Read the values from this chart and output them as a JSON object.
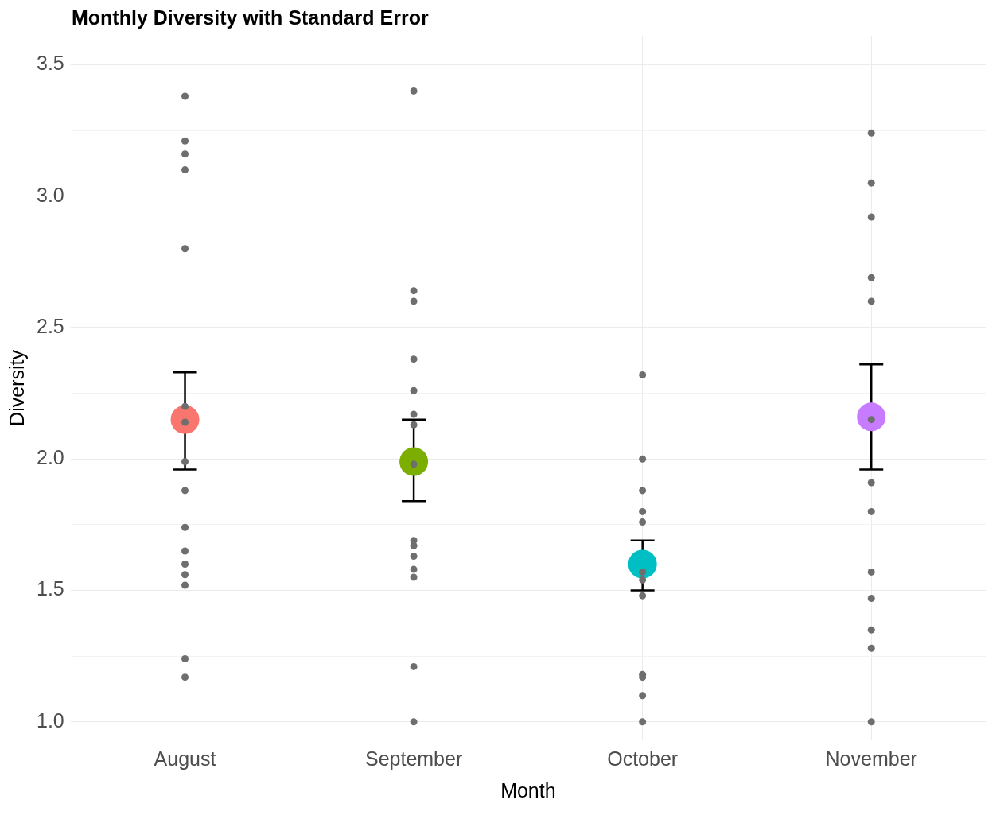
{
  "chart_data": {
    "type": "scatter",
    "title": "Monthly Diversity with Standard Error",
    "xlabel": "Month",
    "ylabel": "Diversity",
    "categories": [
      "August",
      "September",
      "October",
      "November"
    ],
    "ylim": [
      0.93,
      3.61
    ],
    "yticks": [
      {
        "value": 1,
        "label": "1.0"
      },
      {
        "value": 1.25,
        "label": null
      },
      1.5,
      {
        "value": 1.75,
        "label": null
      },
      {
        "value": 2,
        "label": "2.0"
      },
      {
        "value": 2.25,
        "label": null
      },
      2.5,
      {
        "value": 2.75,
        "label": null
      },
      {
        "value": 3,
        "label": "3.0"
      },
      {
        "value": 3.25,
        "label": null
      },
      3.5
    ],
    "grid": true,
    "legend": false,
    "marker": "circle",
    "series": [
      {
        "x": [
          "August",
          "September",
          "October",
          "November"
        ],
        "values": [
          2.15,
          1.99,
          1.6,
          2.16
        ],
        "colors": [
          "#f8766d",
          "#7cae00",
          "#00bfc4",
          "#c77cff"
        ],
        "errors": [
          [
            1.96,
            2.33
          ],
          [
            1.84,
            2.15
          ],
          [
            1.5,
            1.69
          ],
          [
            1.96,
            2.36
          ]
        ]
      },
      {
        "color": "#6e6e6e",
        "x": [
          "August",
          "August",
          "August",
          "August",
          "August",
          "August",
          "August",
          "August",
          "August",
          "August",
          "August",
          "August",
          "August",
          "August",
          "August",
          "August",
          "September",
          "September",
          "September",
          "September",
          "September",
          "September",
          "September",
          "September",
          "September",
          "September",
          "September",
          "September",
          "September",
          "September",
          "September",
          "October",
          "October",
          "October",
          "October",
          "October",
          "October",
          "October",
          "October",
          "October",
          "October",
          "October",
          "October",
          "November",
          "November",
          "November",
          "November",
          "November",
          "November",
          "November",
          "November",
          "November",
          "November",
          "November",
          "November",
          "November"
        ],
        "values": [
          3.38,
          3.21,
          3.16,
          3.1,
          2.8,
          2.2,
          2.14,
          1.99,
          1.88,
          1.74,
          1.65,
          1.6,
          1.56,
          1.52,
          1.24,
          1.17,
          3.4,
          2.64,
          2.6,
          2.38,
          2.26,
          2.17,
          2.13,
          1.98,
          1.69,
          1.67,
          1.63,
          1.58,
          1.55,
          1.21,
          1.0,
          2.32,
          2.0,
          1.88,
          1.8,
          1.76,
          1.57,
          1.54,
          1.48,
          1.18,
          1.17,
          1.1,
          1.0,
          3.24,
          3.05,
          2.92,
          2.69,
          2.6,
          2.15,
          1.91,
          1.8,
          1.57,
          1.47,
          1.35,
          1.28,
          1.0
        ]
      }
    ]
  }
}
